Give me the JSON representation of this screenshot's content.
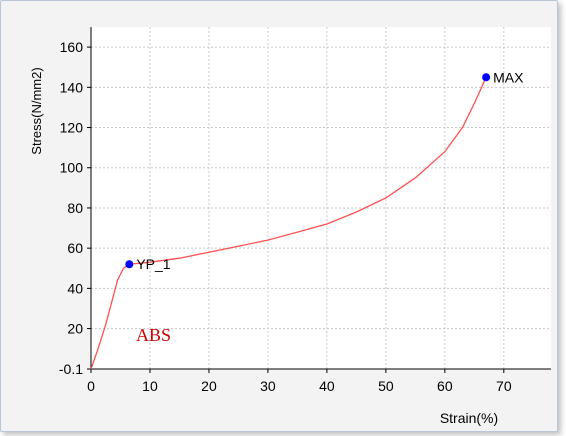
{
  "chart_data": {
    "type": "line",
    "title": "",
    "xlabel": "Strain(%)",
    "ylabel": "Stress(N/mm2)",
    "xlim": [
      0,
      78
    ],
    "ylim": [
      -0.1,
      170
    ],
    "x_ticks": [
      0,
      10,
      20,
      30,
      40,
      50,
      60,
      70
    ],
    "y_ticks": [
      -0.1,
      20,
      40,
      60,
      80,
      100,
      120,
      140,
      160
    ],
    "grid": true,
    "series": [
      {
        "name": "ABS",
        "color": "#ff5050",
        "points": [
          [
            0,
            -0.1
          ],
          [
            1.2,
            10
          ],
          [
            2.5,
            22
          ],
          [
            3.5,
            33
          ],
          [
            4.5,
            44
          ],
          [
            5.5,
            50
          ],
          [
            6.5,
            52
          ],
          [
            10,
            53
          ],
          [
            15,
            55
          ],
          [
            20,
            58
          ],
          [
            25,
            61
          ],
          [
            30,
            64
          ],
          [
            35,
            68
          ],
          [
            40,
            72
          ],
          [
            45,
            78
          ],
          [
            50,
            85
          ],
          [
            55,
            95
          ],
          [
            60,
            108
          ],
          [
            63,
            120
          ],
          [
            65,
            132
          ],
          [
            67,
            145
          ]
        ]
      }
    ],
    "annotations": [
      {
        "label": "YP_1",
        "x": 6.5,
        "y": 52,
        "color": "#0000ff"
      },
      {
        "label": "MAX",
        "x": 67,
        "y": 145,
        "color": "#0000ff"
      }
    ],
    "material_label": {
      "text": "ABS",
      "color": "#cc0000"
    }
  }
}
